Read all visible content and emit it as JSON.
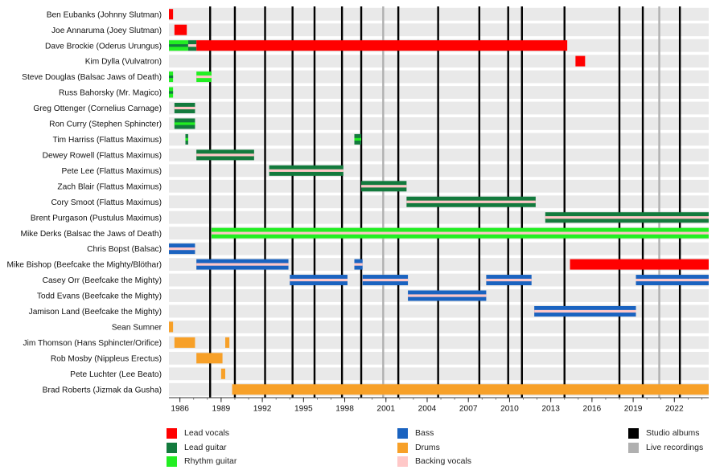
{
  "chart_data": {
    "type": "timeline",
    "x_range": [
      1985.2,
      2024.5
    ],
    "x_ticks": [
      1986,
      1989,
      1992,
      1995,
      1998,
      2001,
      2004,
      2007,
      2010,
      2013,
      2016,
      2019,
      2022
    ],
    "roles": [
      {
        "key": "lead_vocals",
        "label": "Lead vocals",
        "color": "#ff0000"
      },
      {
        "key": "lead_guitar",
        "label": "Lead guitar",
        "color": "#137a3d"
      },
      {
        "key": "rhythm_guitar",
        "label": "Rhythm guitar",
        "color": "#22ee22"
      },
      {
        "key": "bass",
        "label": "Bass",
        "color": "#1a63c0"
      },
      {
        "key": "drums",
        "label": "Drums",
        "color": "#f7a028"
      },
      {
        "key": "backing_vocals",
        "label": "Backing vocals",
        "color": "#ffc8c8"
      }
    ],
    "event_types": [
      {
        "key": "studio",
        "label": "Studio albums",
        "color": "#000000"
      },
      {
        "key": "live",
        "label": "Live recordings",
        "color": "#b0b0b0"
      }
    ],
    "studio_albums": [
      1988.2,
      1990.0,
      1992.2,
      1994.2,
      1995.8,
      1997.8,
      1999.2,
      2001.9,
      2004.8,
      2007.8,
      2009.9,
      2010.9,
      2014.0,
      2018.0,
      2019.7,
      2022.4
    ],
    "live_recordings": [
      2000.8,
      2020.9
    ],
    "members": [
      {
        "name": "Ben Eubanks (Johnny Slutman)",
        "stints": [
          {
            "start": 1985.2,
            "end": 1985.5,
            "main": "lead_vocals"
          }
        ]
      },
      {
        "name": "Joe Annaruma (Joey Slutman)",
        "stints": [
          {
            "start": 1985.6,
            "end": 1986.5,
            "main": "lead_vocals"
          }
        ]
      },
      {
        "name": "Dave Brockie (Oderus Urungus)",
        "stints": [
          {
            "start": 1985.2,
            "end": 1986.6,
            "main": "rhythm_guitar",
            "inner": "lead_guitar"
          },
          {
            "start": 1986.6,
            "end": 1987.2,
            "main": "lead_guitar",
            "inner": "backing_vocals"
          },
          {
            "start": 1987.2,
            "end": 2014.2,
            "main": "lead_vocals"
          }
        ]
      },
      {
        "name": "Kim Dylla (Vulvatron)",
        "stints": [
          {
            "start": 2014.8,
            "end": 2015.5,
            "main": "lead_vocals"
          }
        ]
      },
      {
        "name": "Steve Douglas (Balsac Jaws of Death)",
        "stints": [
          {
            "start": 1985.2,
            "end": 1985.5,
            "main": "rhythm_guitar",
            "inner": "lead_guitar"
          },
          {
            "start": 1987.2,
            "end": 1988.3,
            "main": "rhythm_guitar",
            "inner": "backing_vocals"
          }
        ]
      },
      {
        "name": "Russ Bahorsky (Mr. Magico)",
        "stints": [
          {
            "start": 1985.2,
            "end": 1985.5,
            "main": "rhythm_guitar",
            "inner": "lead_guitar"
          }
        ]
      },
      {
        "name": "Greg Ottenger (Cornelius Carnage)",
        "stints": [
          {
            "start": 1985.6,
            "end": 1987.1,
            "main": "lead_guitar",
            "inner": "backing_vocals"
          }
        ]
      },
      {
        "name": "Ron Curry (Stephen Sphincter)",
        "stints": [
          {
            "start": 1985.6,
            "end": 1987.1,
            "main": "lead_guitar",
            "inner": "rhythm_guitar"
          }
        ]
      },
      {
        "name": "Tim Harriss (Flattus Maximus)",
        "stints": [
          {
            "start": 1986.4,
            "end": 1986.6,
            "main": "lead_guitar",
            "inner": "rhythm_guitar"
          },
          {
            "start": 1998.7,
            "end": 1999.2,
            "main": "lead_guitar",
            "inner": "rhythm_guitar"
          }
        ]
      },
      {
        "name": "Dewey Rowell (Flattus Maximus)",
        "stints": [
          {
            "start": 1987.2,
            "end": 1991.4,
            "main": "lead_guitar",
            "inner": "backing_vocals"
          }
        ]
      },
      {
        "name": "Pete Lee (Flattus Maximus)",
        "stints": [
          {
            "start": 1992.5,
            "end": 1997.9,
            "main": "lead_guitar",
            "inner": "backing_vocals"
          }
        ]
      },
      {
        "name": "Zach Blair (Flattus Maximus)",
        "stints": [
          {
            "start": 1999.2,
            "end": 2002.5,
            "main": "lead_guitar",
            "inner": "backing_vocals"
          }
        ]
      },
      {
        "name": "Cory Smoot (Flattus Maximus)",
        "stints": [
          {
            "start": 2002.5,
            "end": 2011.9,
            "main": "lead_guitar",
            "inner": "backing_vocals"
          }
        ]
      },
      {
        "name": "Brent Purgason (Pustulus Maximus)",
        "stints": [
          {
            "start": 2012.6,
            "end": 2024.5,
            "main": "lead_guitar",
            "inner": "backing_vocals"
          }
        ]
      },
      {
        "name": "Mike Derks (Balsac the Jaws of Death)",
        "stints": [
          {
            "start": 1988.3,
            "end": 2024.5,
            "main": "rhythm_guitar",
            "inner": "backing_vocals"
          }
        ]
      },
      {
        "name": "Chris Bopst (Balsac)",
        "stints": [
          {
            "start": 1985.2,
            "end": 1987.1,
            "main": "bass",
            "inner": "backing_vocals"
          }
        ]
      },
      {
        "name": "Mike Bishop (Beefcake the Mighty/Blöthar)",
        "stints": [
          {
            "start": 1987.2,
            "end": 1993.9,
            "main": "bass",
            "inner": "backing_vocals"
          },
          {
            "start": 1998.7,
            "end": 1999.3,
            "main": "bass",
            "inner": "backing_vocals"
          },
          {
            "start": 2014.4,
            "end": 2024.5,
            "main": "lead_vocals"
          }
        ]
      },
      {
        "name": "Casey Orr (Beefcake the Mighty)",
        "stints": [
          {
            "start": 1994.0,
            "end": 1998.2,
            "main": "bass",
            "inner": "backing_vocals"
          },
          {
            "start": 1999.3,
            "end": 2002.6,
            "main": "bass",
            "inner": "backing_vocals"
          },
          {
            "start": 2008.3,
            "end": 2011.6,
            "main": "bass",
            "inner": "backing_vocals"
          },
          {
            "start": 2019.2,
            "end": 2024.5,
            "main": "bass",
            "inner": "backing_vocals"
          }
        ]
      },
      {
        "name": "Todd Evans (Beefcake the Mighty)",
        "stints": [
          {
            "start": 2002.6,
            "end": 2008.3,
            "main": "bass",
            "inner": "backing_vocals"
          }
        ]
      },
      {
        "name": "Jamison Land (Beefcake the Mighty)",
        "stints": [
          {
            "start": 2011.8,
            "end": 2019.2,
            "main": "bass",
            "inner": "backing_vocals"
          }
        ]
      },
      {
        "name": "Sean Sumner",
        "stints": [
          {
            "start": 1985.2,
            "end": 1985.5,
            "main": "drums"
          }
        ]
      },
      {
        "name": "Jim Thomson (Hans Sphincter/Orifice)",
        "stints": [
          {
            "start": 1985.6,
            "end": 1987.1,
            "main": "drums"
          },
          {
            "start": 1989.3,
            "end": 1989.6,
            "main": "drums"
          }
        ]
      },
      {
        "name": "Rob Mosby (Nippleus Erectus)",
        "stints": [
          {
            "start": 1987.2,
            "end": 1989.1,
            "main": "drums"
          }
        ]
      },
      {
        "name": "Pete Luchter (Lee Beato)",
        "stints": [
          {
            "start": 1989.0,
            "end": 1989.3,
            "main": "drums"
          }
        ]
      },
      {
        "name": "Brad Roberts (Jizmak da Gusha)",
        "stints": [
          {
            "start": 1989.8,
            "end": 2024.5,
            "main": "drums"
          }
        ]
      }
    ]
  }
}
